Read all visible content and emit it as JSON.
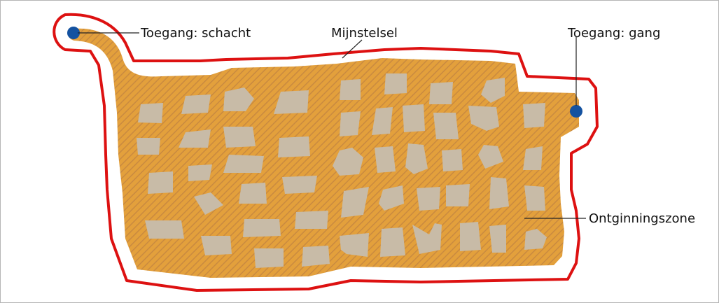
{
  "labels": {
    "shaft_access": "Toegang: schacht",
    "mine_system": "Mijnstelsel",
    "tunnel_access": "Toegang: gang",
    "extraction_zone": "Ontginningszone"
  },
  "colors": {
    "boundary": "#dd1111",
    "zone_fill": "#e3a03c",
    "zone_hatch": "#c98a40",
    "pillar": "#c8bba7",
    "access_point": "#1452a0",
    "leader_line": "#222222"
  }
}
